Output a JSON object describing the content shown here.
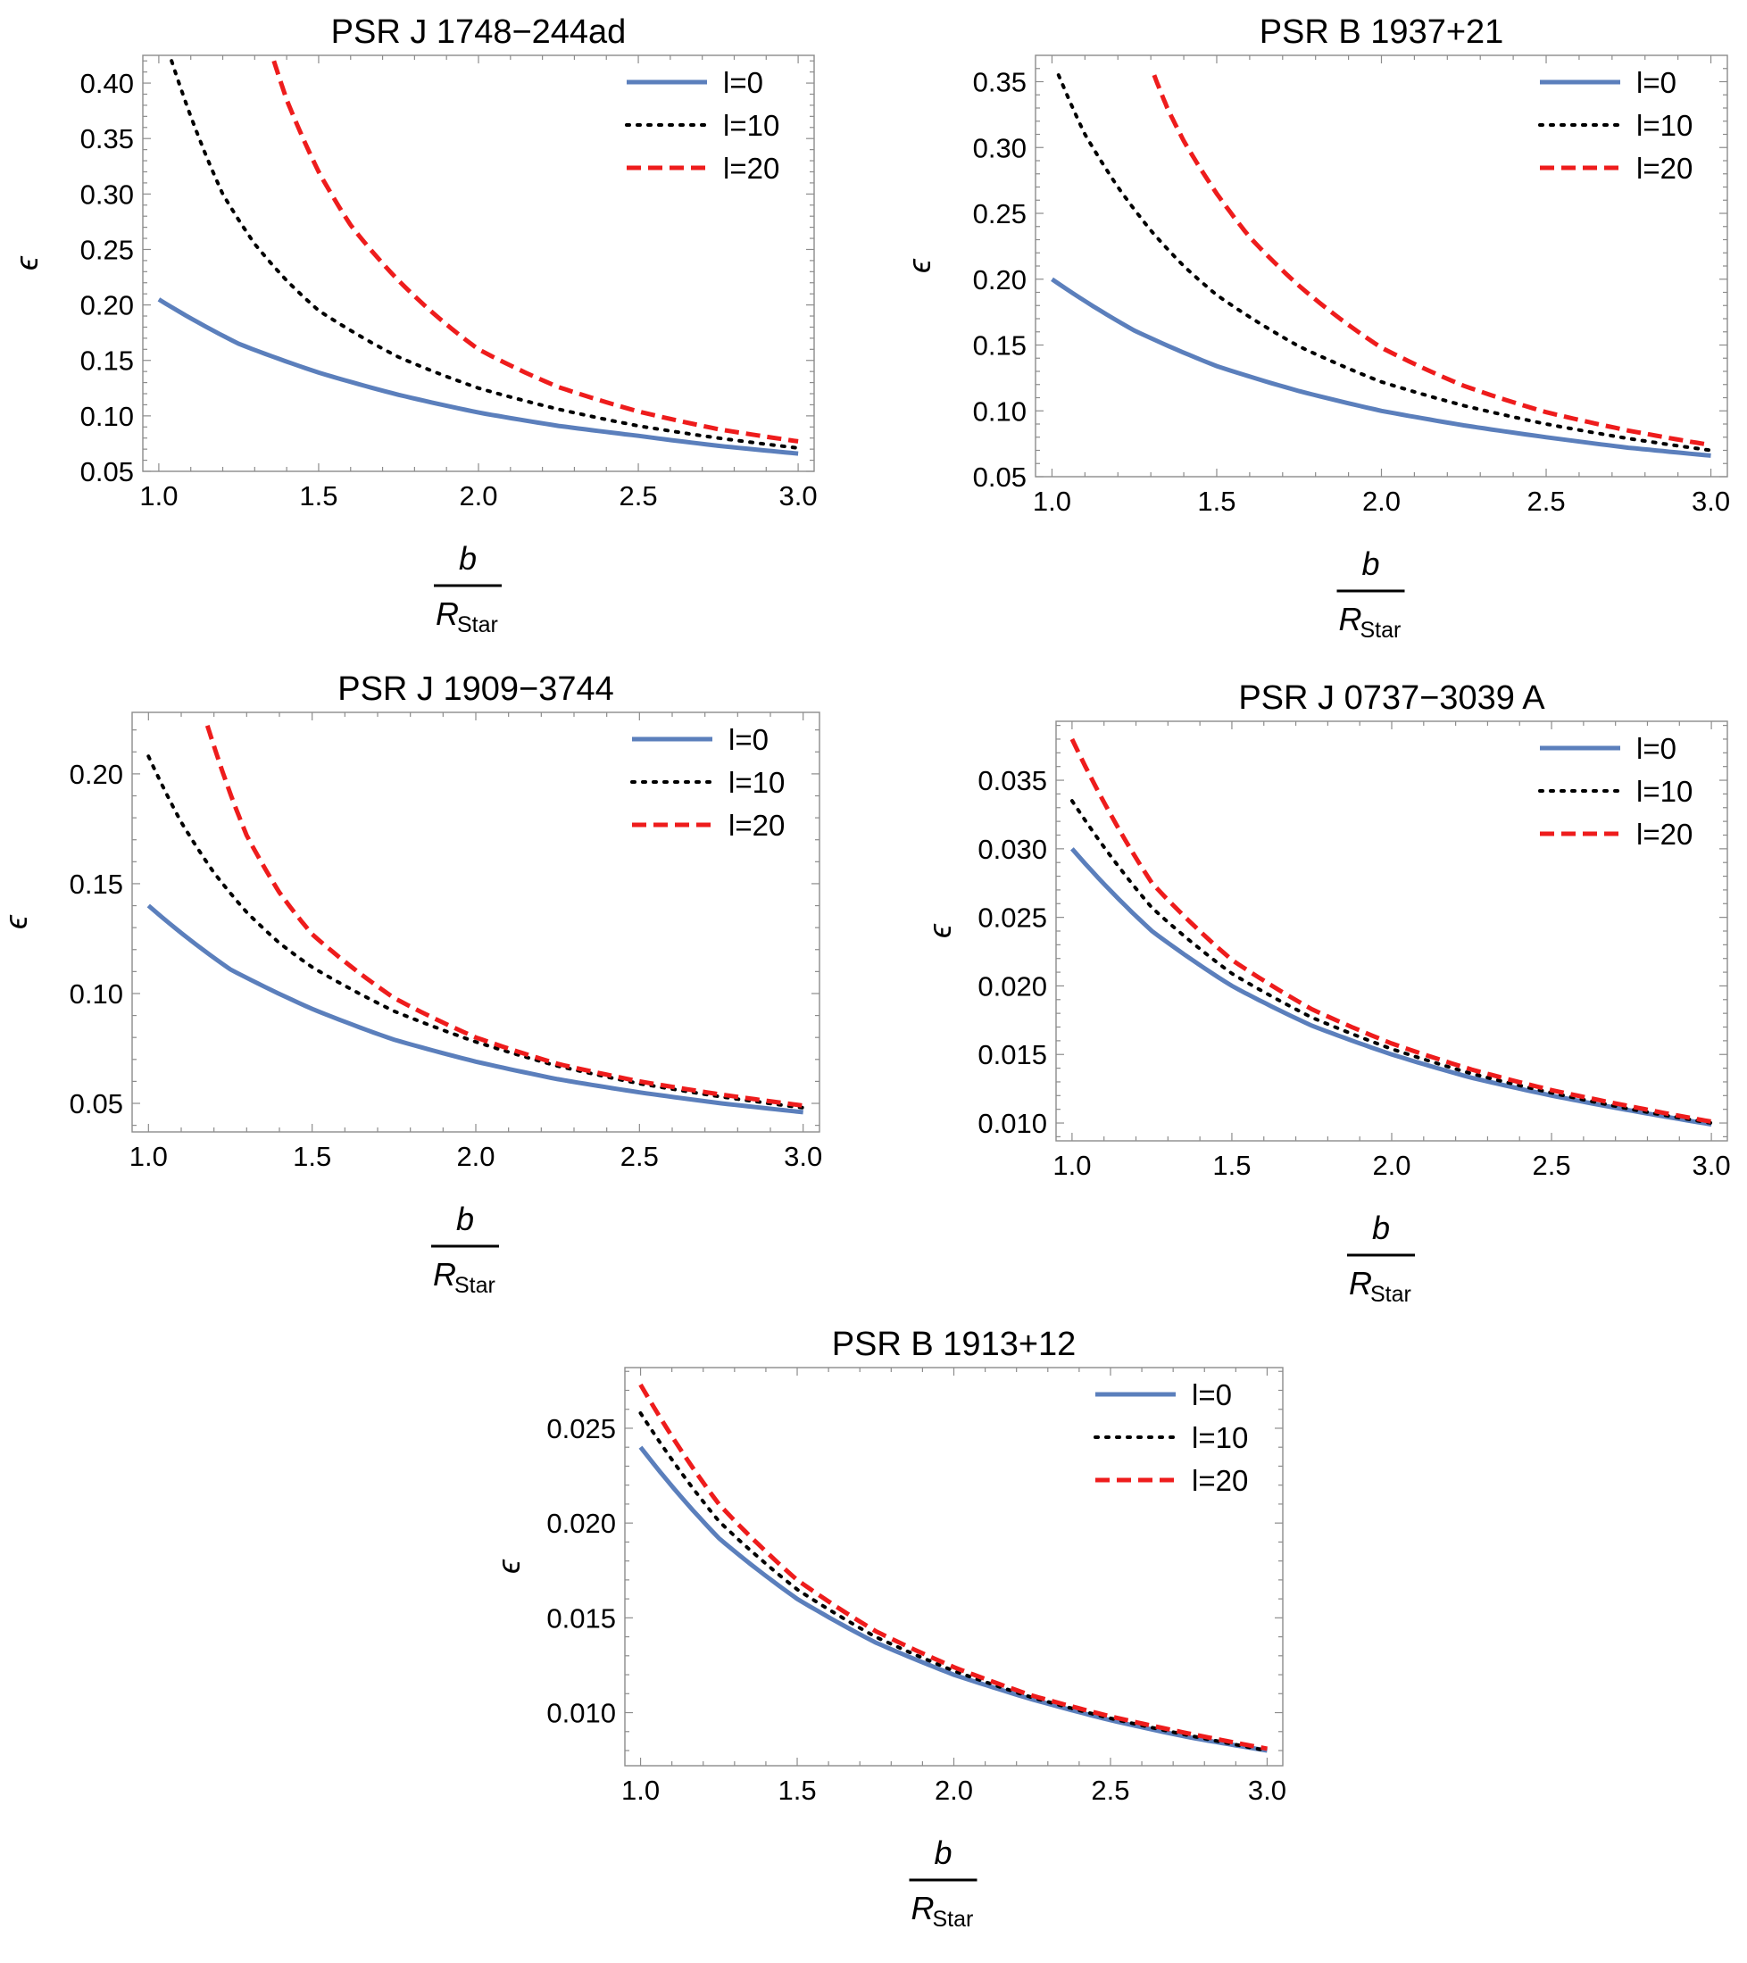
{
  "chart_data": [
    {
      "type": "line",
      "title": "PSR J 1748−244ad",
      "xlabel": {
        "numerator": "b",
        "denominator": "R",
        "denominator_sub": "Star"
      },
      "ylabel": "ϵ",
      "xlim": [
        0.95,
        3.05
      ],
      "ylim": [
        0.05,
        0.425
      ],
      "xticks": [
        1.0,
        1.5,
        2.0,
        2.5,
        3.0
      ],
      "xtick_labels": [
        "1.0",
        "1.5",
        "2.0",
        "2.5",
        "3.0"
      ],
      "yticks": [
        0.05,
        0.1,
        0.15,
        0.2,
        0.25,
        0.3,
        0.35,
        0.4
      ],
      "ytick_labels": [
        "0.05",
        "0.10",
        "0.15",
        "0.20",
        "0.25",
        "0.30",
        "0.35",
        "0.40"
      ],
      "legend_position": "top-right",
      "series": [
        {
          "name": "l=0",
          "style": "solid",
          "color": "#5b7fbc",
          "x": [
            1.0,
            1.25,
            1.5,
            1.75,
            2.0,
            2.25,
            2.5,
            2.75,
            3.0
          ],
          "y": [
            0.205,
            0.165,
            0.139,
            0.119,
            0.103,
            0.091,
            0.082,
            0.073,
            0.066
          ]
        },
        {
          "name": "l=10",
          "style": "dotted",
          "color": "#000000",
          "x": [
            1.04,
            1.1,
            1.2,
            1.3,
            1.4,
            1.5,
            1.75,
            2.0,
            2.25,
            2.5,
            2.75,
            3.0
          ],
          "y": [
            0.42,
            0.37,
            0.3,
            0.255,
            0.222,
            0.195,
            0.153,
            0.125,
            0.106,
            0.091,
            0.08,
            0.071
          ]
        },
        {
          "name": "l=20",
          "style": "dashed",
          "color": "#ee1c1c",
          "x": [
            1.36,
            1.4,
            1.5,
            1.6,
            1.75,
            2.0,
            2.25,
            2.5,
            2.75,
            3.0
          ],
          "y": [
            0.42,
            0.385,
            0.32,
            0.272,
            0.222,
            0.16,
            0.126,
            0.104,
            0.088,
            0.077
          ]
        }
      ]
    },
    {
      "type": "line",
      "title": "PSR B 1937+21",
      "xlabel": {
        "numerator": "b",
        "denominator": "R",
        "denominator_sub": "Star"
      },
      "ylabel": "ϵ",
      "xlim": [
        0.95,
        3.05
      ],
      "ylim": [
        0.05,
        0.37
      ],
      "xticks": [
        1.0,
        1.5,
        2.0,
        2.5,
        3.0
      ],
      "xtick_labels": [
        "1.0",
        "1.5",
        "2.0",
        "2.5",
        "3.0"
      ],
      "yticks": [
        0.05,
        0.1,
        0.15,
        0.2,
        0.25,
        0.3,
        0.35
      ],
      "ytick_labels": [
        "0.05",
        "0.10",
        "0.15",
        "0.20",
        "0.25",
        "0.30",
        "0.35"
      ],
      "legend_position": "top-right",
      "series": [
        {
          "name": "l=0",
          "style": "solid",
          "color": "#5b7fbc",
          "x": [
            1.0,
            1.25,
            1.5,
            1.75,
            2.0,
            2.25,
            2.5,
            2.75,
            3.0
          ],
          "y": [
            0.2,
            0.161,
            0.134,
            0.115,
            0.1,
            0.089,
            0.08,
            0.072,
            0.066
          ]
        },
        {
          "name": "l=10",
          "style": "dotted",
          "color": "#000000",
          "x": [
            1.02,
            1.1,
            1.2,
            1.3,
            1.4,
            1.5,
            1.75,
            2.0,
            2.25,
            2.5,
            2.75,
            3.0
          ],
          "y": [
            0.355,
            0.31,
            0.27,
            0.237,
            0.21,
            0.188,
            0.149,
            0.122,
            0.104,
            0.09,
            0.079,
            0.07
          ]
        },
        {
          "name": "l=20",
          "style": "dashed",
          "color": "#ee1c1c",
          "x": [
            1.31,
            1.35,
            1.4,
            1.5,
            1.6,
            1.75,
            2.0,
            2.25,
            2.5,
            2.75,
            3.0
          ],
          "y": [
            0.355,
            0.33,
            0.305,
            0.265,
            0.232,
            0.195,
            0.148,
            0.119,
            0.099,
            0.085,
            0.074
          ]
        }
      ]
    },
    {
      "type": "line",
      "title": "PSR J 1909−3744",
      "xlabel": {
        "numerator": "b",
        "denominator": "R",
        "denominator_sub": "Star"
      },
      "ylabel": "ϵ",
      "xlim": [
        0.95,
        3.05
      ],
      "ylim": [
        0.037,
        0.228
      ],
      "xticks": [
        1.0,
        1.5,
        2.0,
        2.5,
        3.0
      ],
      "xtick_labels": [
        "1.0",
        "1.5",
        "2.0",
        "2.5",
        "3.0"
      ],
      "yticks": [
        0.05,
        0.1,
        0.15,
        0.2
      ],
      "ytick_labels": [
        "0.05",
        "0.10",
        "0.15",
        "0.20"
      ],
      "legend_position": "top-right",
      "series": [
        {
          "name": "l=0",
          "style": "solid",
          "color": "#5b7fbc",
          "x": [
            1.0,
            1.25,
            1.5,
            1.75,
            2.0,
            2.25,
            2.5,
            2.75,
            3.0
          ],
          "y": [
            0.14,
            0.111,
            0.093,
            0.079,
            0.069,
            0.061,
            0.055,
            0.05,
            0.046
          ]
        },
        {
          "name": "l=10",
          "style": "dotted",
          "color": "#000000",
          "x": [
            1.0,
            1.1,
            1.2,
            1.3,
            1.4,
            1.5,
            1.75,
            2.0,
            2.25,
            2.5,
            2.75,
            3.0
          ],
          "y": [
            0.208,
            0.178,
            0.155,
            0.137,
            0.123,
            0.112,
            0.092,
            0.078,
            0.067,
            0.059,
            0.053,
            0.048
          ]
        },
        {
          "name": "l=20",
          "style": "dashed",
          "color": "#ee1c1c",
          "x": [
            1.18,
            1.25,
            1.3,
            1.4,
            1.5,
            1.75,
            2.0,
            2.25,
            2.5,
            2.75,
            3.0
          ],
          "y": [
            0.222,
            0.191,
            0.172,
            0.146,
            0.127,
            0.098,
            0.08,
            0.068,
            0.06,
            0.054,
            0.049
          ]
        }
      ]
    },
    {
      "type": "line",
      "title": "PSR J 0737−3039 A",
      "xlabel": {
        "numerator": "b",
        "denominator": "R",
        "denominator_sub": "Star"
      },
      "ylabel": "ϵ",
      "xlim": [
        0.95,
        3.05
      ],
      "ylim": [
        0.0087,
        0.0393
      ],
      "xticks": [
        1.0,
        1.5,
        2.0,
        2.5,
        3.0
      ],
      "xtick_labels": [
        "1.0",
        "1.5",
        "2.0",
        "2.5",
        "3.0"
      ],
      "yticks": [
        0.01,
        0.015,
        0.02,
        0.025,
        0.03,
        0.035
      ],
      "ytick_labels": [
        "0.010",
        "0.015",
        "0.020",
        "0.025",
        "0.030",
        "0.035"
      ],
      "legend_position": "top-right",
      "series": [
        {
          "name": "l=0",
          "style": "solid",
          "color": "#5b7fbc",
          "x": [
            1.0,
            1.25,
            1.5,
            1.75,
            2.0,
            2.25,
            2.5,
            2.75,
            3.0
          ],
          "y": [
            0.03,
            0.024,
            0.02,
            0.0171,
            0.015,
            0.0133,
            0.012,
            0.0109,
            0.0099
          ]
        },
        {
          "name": "l=10",
          "style": "dotted",
          "color": "#000000",
          "x": [
            1.0,
            1.25,
            1.5,
            1.75,
            2.0,
            2.25,
            2.5,
            2.75,
            3.0
          ],
          "y": [
            0.0335,
            0.0257,
            0.0209,
            0.0177,
            0.0154,
            0.0136,
            0.0122,
            0.011,
            0.01
          ]
        },
        {
          "name": "l=20",
          "style": "dashed",
          "color": "#ee1c1c",
          "x": [
            1.0,
            1.25,
            1.5,
            1.75,
            2.0,
            2.25,
            2.5,
            2.75,
            3.0
          ],
          "y": [
            0.038,
            0.0275,
            0.0219,
            0.0183,
            0.0158,
            0.0139,
            0.0124,
            0.0112,
            0.0101
          ]
        }
      ]
    },
    {
      "type": "line",
      "title": "PSR B 1913+12",
      "xlabel": {
        "numerator": "b",
        "denominator": "R",
        "denominator_sub": "Star"
      },
      "ylabel": "ϵ",
      "xlim": [
        0.95,
        3.05
      ],
      "ylim": [
        0.0072,
        0.0282
      ],
      "xticks": [
        1.0,
        1.5,
        2.0,
        2.5,
        3.0
      ],
      "xtick_labels": [
        "1.0",
        "1.5",
        "2.0",
        "2.5",
        "3.0"
      ],
      "yticks": [
        0.01,
        0.015,
        0.02,
        0.025
      ],
      "ytick_labels": [
        "0.010",
        "0.015",
        "0.020",
        "0.025"
      ],
      "legend_position": "top-right",
      "series": [
        {
          "name": "l=0",
          "style": "solid",
          "color": "#5b7fbc",
          "x": [
            1.0,
            1.25,
            1.5,
            1.75,
            2.0,
            2.25,
            2.5,
            2.75,
            3.0
          ],
          "y": [
            0.024,
            0.0192,
            0.016,
            0.0137,
            0.012,
            0.0107,
            0.0096,
            0.0087,
            0.008
          ]
        },
        {
          "name": "l=10",
          "style": "dotted",
          "color": "#000000",
          "x": [
            1.0,
            1.25,
            1.5,
            1.75,
            2.0,
            2.25,
            2.5,
            2.75,
            3.0
          ],
          "y": [
            0.0258,
            0.0201,
            0.0165,
            0.014,
            0.0122,
            0.0108,
            0.0097,
            0.0088,
            0.008
          ]
        },
        {
          "name": "l=20",
          "style": "dashed",
          "color": "#ee1c1c",
          "x": [
            1.0,
            1.25,
            1.5,
            1.75,
            2.0,
            2.25,
            2.5,
            2.75,
            3.0
          ],
          "y": [
            0.0273,
            0.021,
            0.017,
            0.0143,
            0.0124,
            0.0109,
            0.0098,
            0.0089,
            0.0081
          ]
        }
      ]
    }
  ]
}
